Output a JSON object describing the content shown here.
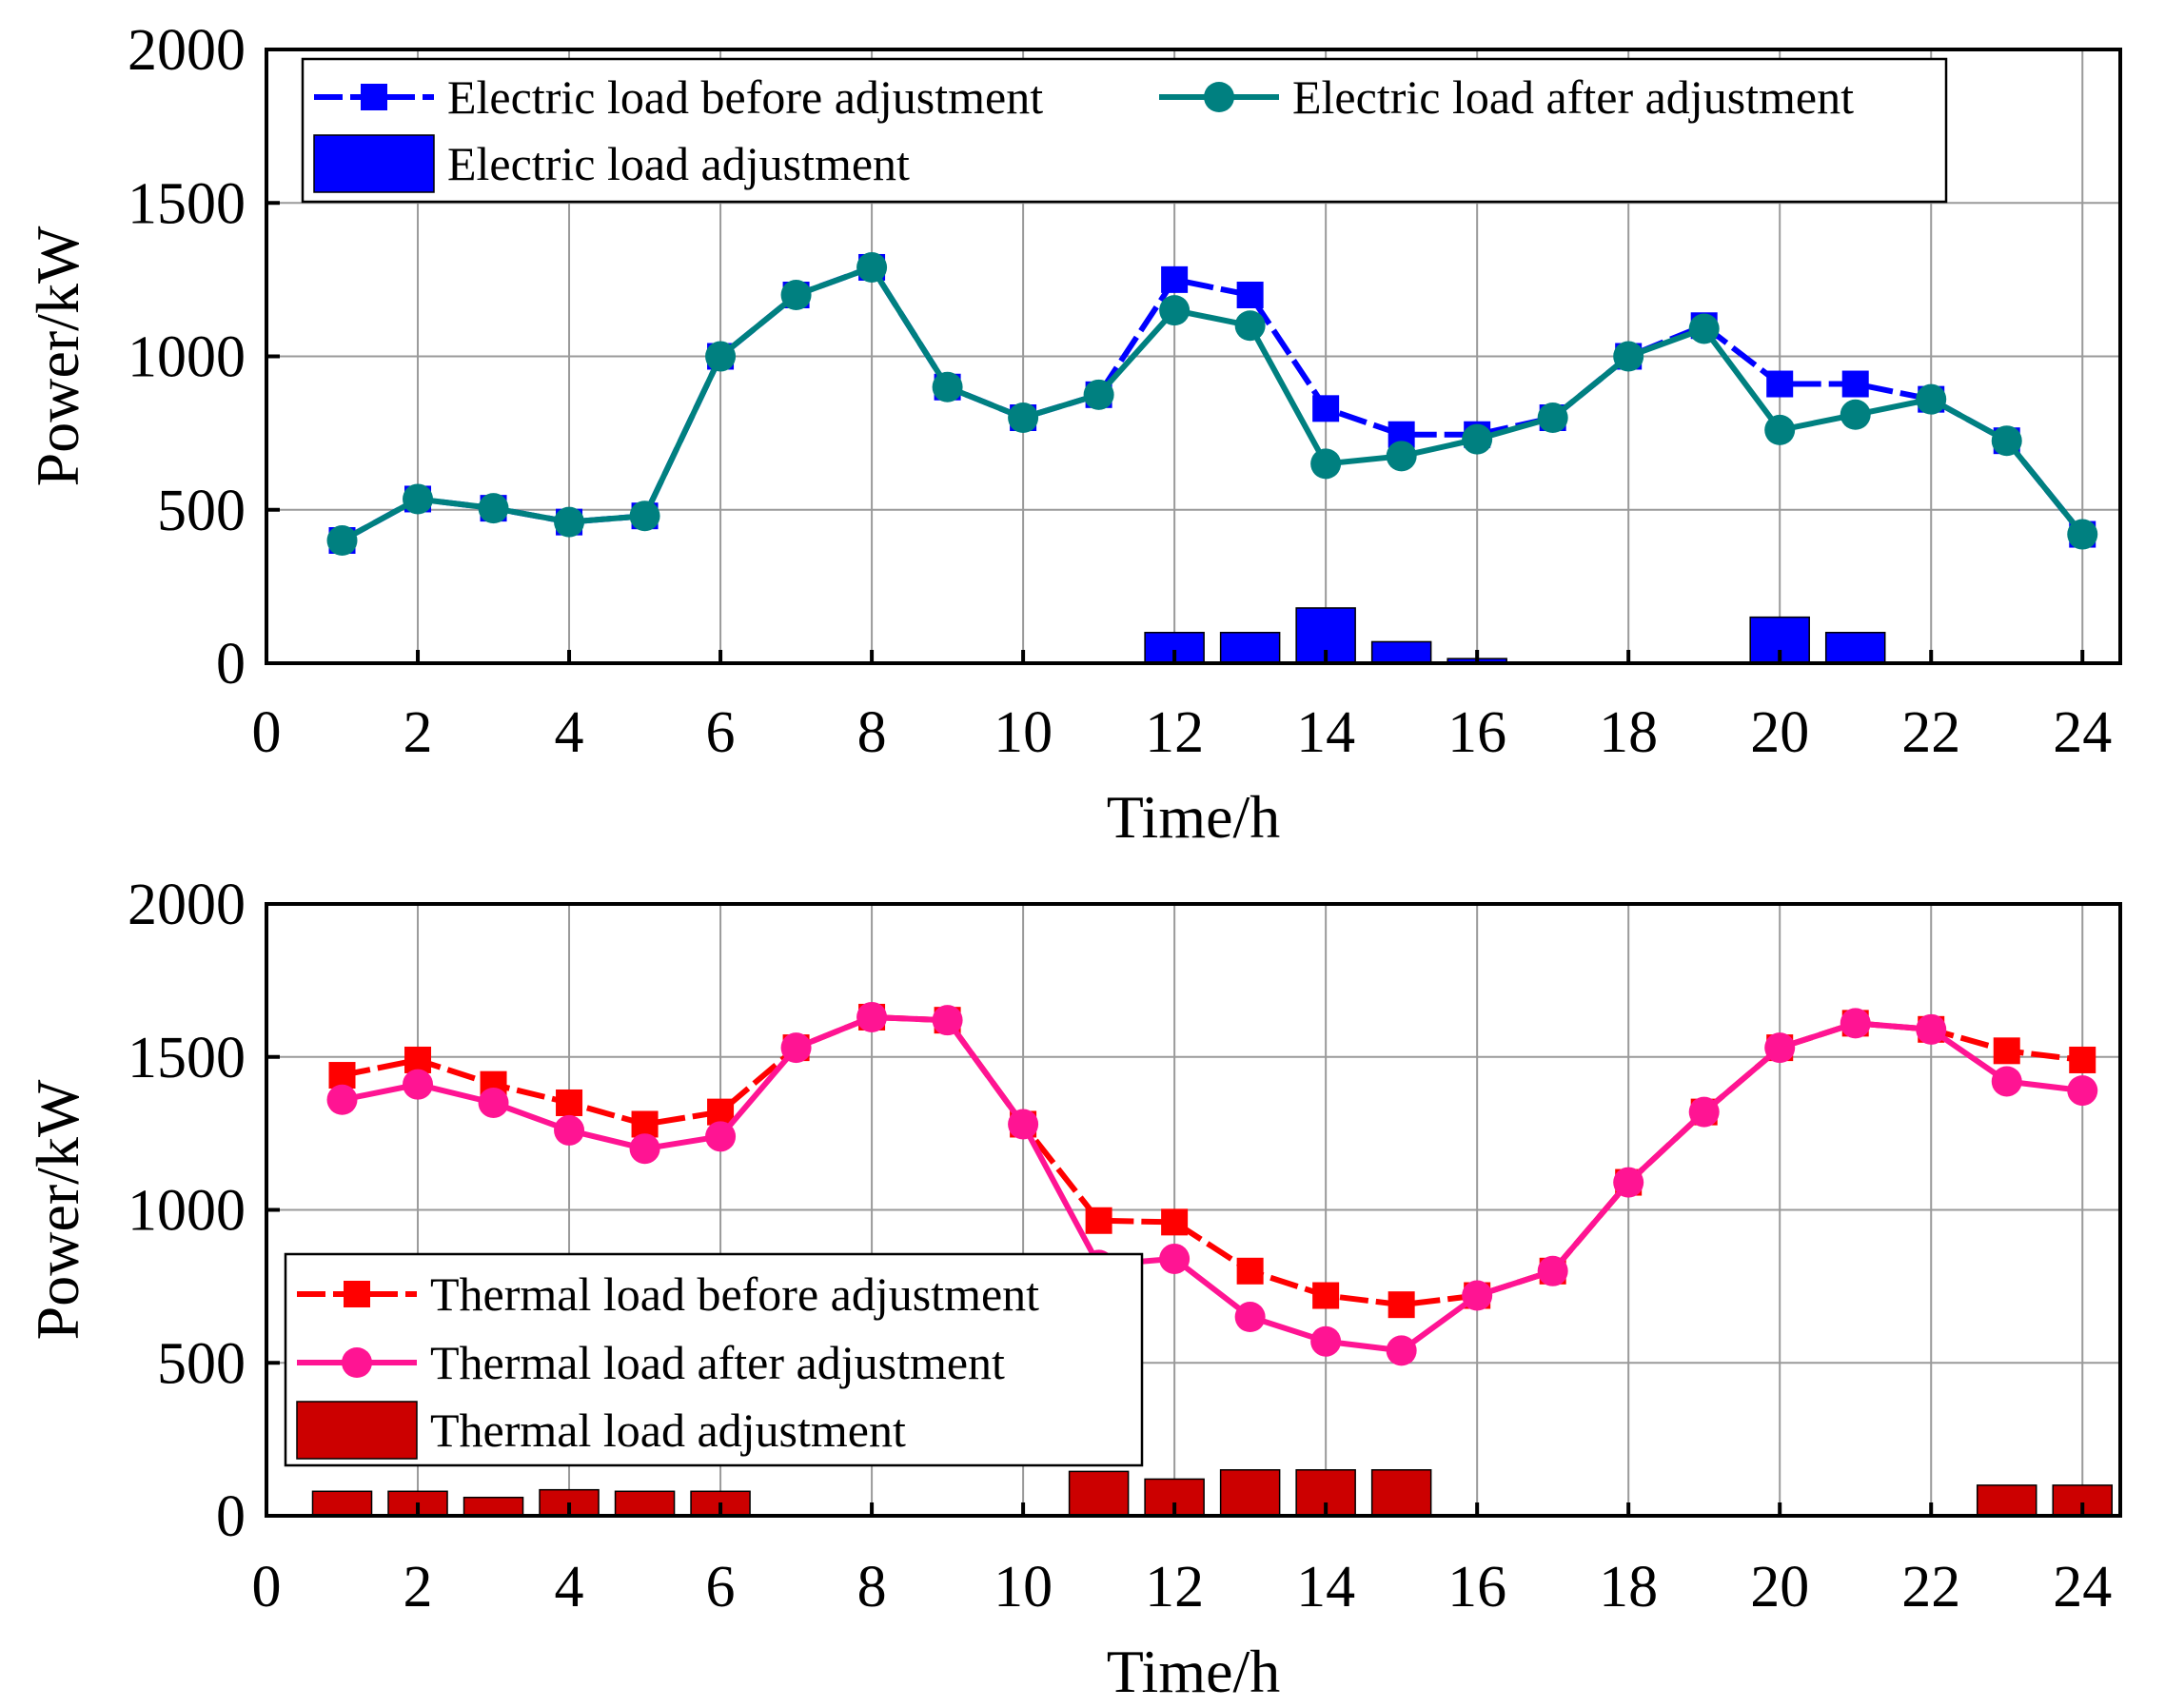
{
  "chart_data": [
    {
      "type": "line",
      "xlabel": "Time/h",
      "ylabel": "Power/kW",
      "xlim": [
        0,
        24.5
      ],
      "ylim": [
        0,
        2000
      ],
      "xticks": [
        0,
        2,
        4,
        6,
        8,
        10,
        12,
        14,
        16,
        18,
        20,
        22,
        24
      ],
      "yticks": [
        0,
        500,
        1000,
        1500,
        2000
      ],
      "x": [
        1,
        2,
        3,
        4,
        5,
        6,
        7,
        8,
        9,
        10,
        11,
        12,
        13,
        14,
        15,
        16,
        17,
        18,
        19,
        20,
        21,
        22,
        23,
        24
      ],
      "series": [
        {
          "name": "Electric load before adjustment",
          "kind": "line",
          "marker": "square",
          "color": "#0000FF",
          "values": [
            400,
            535,
            505,
            460,
            480,
            1000,
            1200,
            1290,
            900,
            800,
            875,
            1250,
            1200,
            830,
            745,
            745,
            800,
            1000,
            1100,
            910,
            910,
            860,
            725,
            420
          ]
        },
        {
          "name": "Electric load after adjustment",
          "kind": "line",
          "marker": "circle",
          "color": "#008080",
          "values": [
            400,
            535,
            505,
            460,
            480,
            1000,
            1200,
            1290,
            900,
            800,
            875,
            1150,
            1100,
            650,
            675,
            730,
            800,
            1000,
            1090,
            760,
            810,
            860,
            725,
            420
          ]
        },
        {
          "name": "Electric load adjustment",
          "kind": "bar",
          "color": "#0000FF",
          "values": [
            0,
            0,
            0,
            0,
            0,
            0,
            0,
            0,
            0,
            0,
            0,
            100,
            100,
            180,
            70,
            15,
            0,
            0,
            0,
            150,
            100,
            0,
            0,
            0
          ]
        }
      ],
      "legend": {
        "position": "top-left",
        "columns": 2
      }
    },
    {
      "type": "line",
      "xlabel": "Time/h",
      "ylabel": "Power/kW",
      "xlim": [
        0,
        24.5
      ],
      "ylim": [
        0,
        2000
      ],
      "xticks": [
        0,
        2,
        4,
        6,
        8,
        10,
        12,
        14,
        16,
        18,
        20,
        22,
        24
      ],
      "yticks": [
        0,
        500,
        1000,
        1500,
        2000
      ],
      "x": [
        1,
        2,
        3,
        4,
        5,
        6,
        7,
        8,
        9,
        10,
        11,
        12,
        13,
        14,
        15,
        16,
        17,
        18,
        19,
        20,
        21,
        22,
        23,
        24
      ],
      "series": [
        {
          "name": "Thermal load before adjustment",
          "kind": "line",
          "marker": "square",
          "color": "#FF0000",
          "values": [
            1440,
            1490,
            1410,
            1350,
            1280,
            1320,
            1530,
            1630,
            1620,
            1280,
            965,
            960,
            800,
            720,
            690,
            720,
            800,
            1090,
            1320,
            1530,
            1610,
            1590,
            1520,
            1490
          ]
        },
        {
          "name": "Thermal load after adjustment",
          "kind": "line",
          "marker": "circle",
          "color": "#FF1493",
          "values": [
            1360,
            1410,
            1350,
            1260,
            1200,
            1240,
            1530,
            1630,
            1620,
            1280,
            820,
            840,
            650,
            570,
            540,
            720,
            800,
            1090,
            1320,
            1530,
            1610,
            1590,
            1420,
            1390
          ]
        },
        {
          "name": "Thermal load adjustment",
          "kind": "bar",
          "color": "#CC0000",
          "values": [
            80,
            80,
            60,
            85,
            80,
            80,
            0,
            0,
            0,
            0,
            145,
            120,
            150,
            150,
            150,
            0,
            0,
            0,
            0,
            0,
            0,
            0,
            100,
            100
          ]
        }
      ],
      "legend": {
        "position": "lower-left",
        "columns": 1
      }
    }
  ]
}
